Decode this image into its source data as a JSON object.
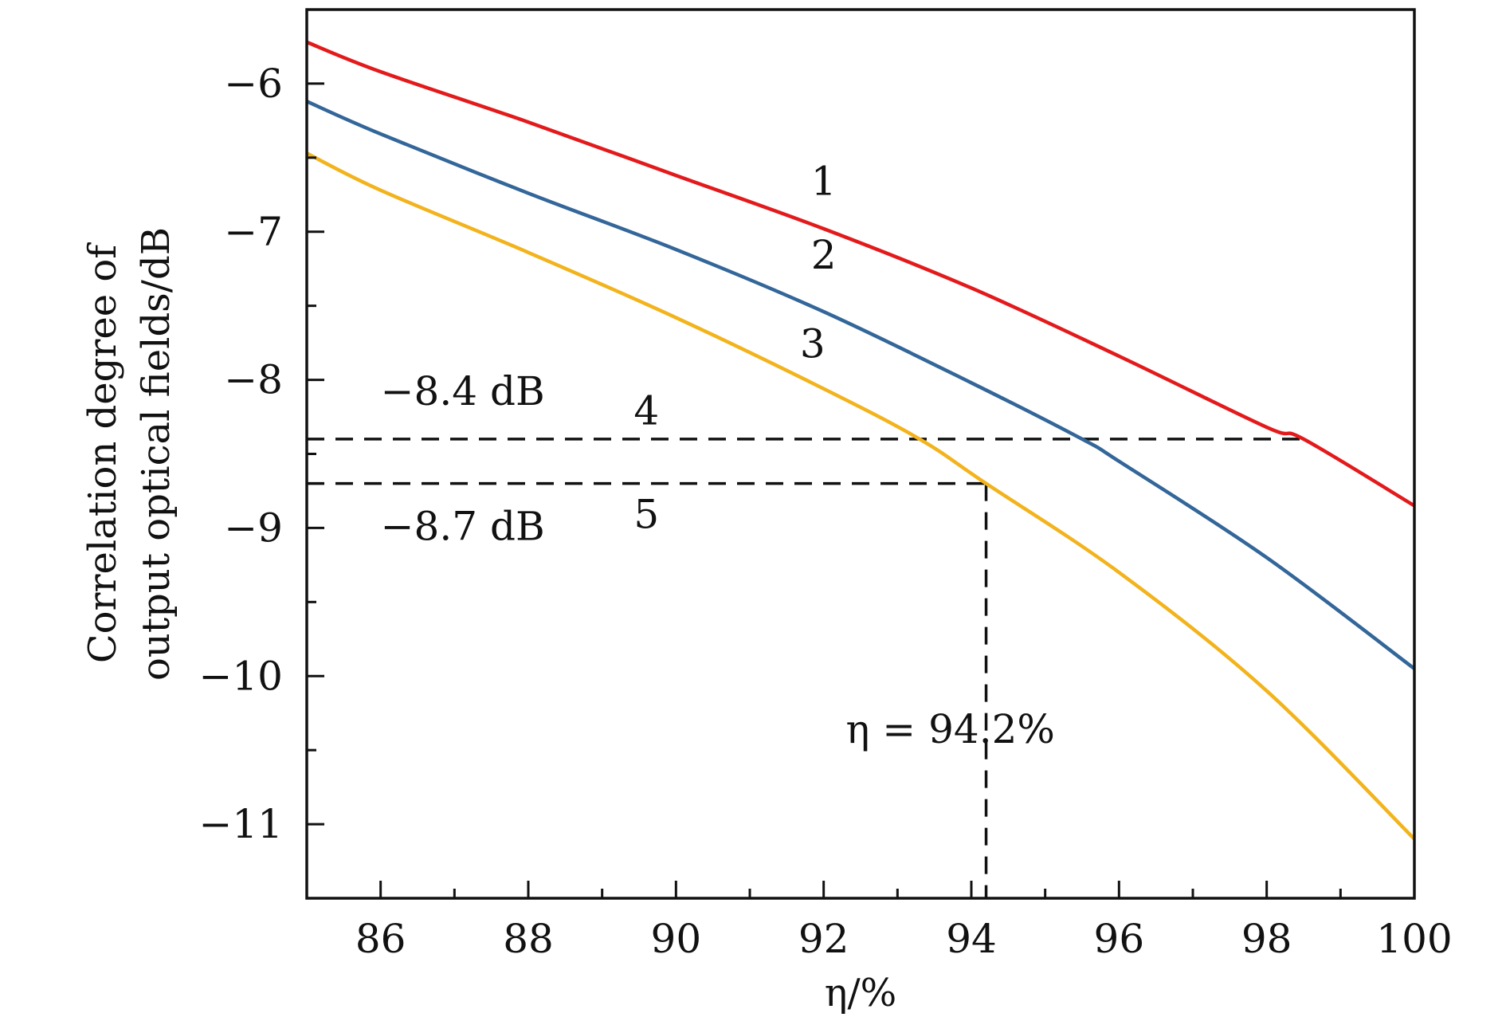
{
  "chart_data": {
    "type": "line",
    "title": "",
    "xlabel": "η/%",
    "ylabel_line1": "Correlation degree of",
    "ylabel_line2": "output optical fields/dB",
    "xlim": [
      85,
      100
    ],
    "ylim": [
      -11.5,
      -5.5
    ],
    "x_ticks": [
      86,
      88,
      90,
      92,
      94,
      96,
      98,
      100
    ],
    "x_tick_labels": [
      "86",
      "88",
      "90",
      "92",
      "94",
      "96",
      "98",
      "100"
    ],
    "y_ticks": [
      -11,
      -10,
      -9,
      -8,
      -7,
      -6
    ],
    "y_tick_labels": [
      "−11",
      "−10",
      "−9",
      "−8",
      "−7",
      "−6"
    ],
    "series": [
      {
        "name": "1",
        "color": "#e31a1c",
        "x": [
          85,
          86,
          88,
          90,
          92,
          94,
          96,
          98,
          98.5,
          100
        ],
        "y": [
          -5.72,
          -5.92,
          -6.26,
          -6.62,
          -6.98,
          -7.38,
          -7.84,
          -8.32,
          -8.4,
          -8.85
        ]
      },
      {
        "name": "2",
        "color": "#336699",
        "x": [
          85,
          86,
          88,
          90,
          92,
          94,
          95.5,
          96,
          98,
          100
        ],
        "y": [
          -6.12,
          -6.34,
          -6.74,
          -7.12,
          -7.54,
          -8.02,
          -8.4,
          -8.55,
          -9.2,
          -9.95
        ]
      },
      {
        "name": "3",
        "color": "#f2b31c",
        "x": [
          85,
          86,
          88,
          90,
          92,
          93.3,
          94.2,
          96,
          98,
          100
        ],
        "y": [
          -6.47,
          -6.72,
          -7.14,
          -7.58,
          -8.06,
          -8.4,
          -8.7,
          -9.3,
          -10.1,
          -11.1
        ]
      }
    ],
    "reference_lines": [
      {
        "name": "4",
        "type": "horizontal",
        "y": -8.4,
        "x_from": 85,
        "x_to": 98.5,
        "dash": true
      },
      {
        "name": "5",
        "type": "horizontal",
        "y": -8.7,
        "x_from": 85,
        "x_to": 94.2,
        "dash": true
      },
      {
        "name": "eta",
        "type": "vertical",
        "x": 94.2,
        "y_from": -8.7,
        "y_to": -11.5,
        "dash": true
      }
    ],
    "curve_labels": [
      {
        "text": "1",
        "x": 92.0,
        "y": -6.75
      },
      {
        "text": "2",
        "x": 92.0,
        "y": -7.25
      },
      {
        "text": "3",
        "x": 91.85,
        "y": -7.85
      },
      {
        "text": "4",
        "x": 89.6,
        "y": -8.3
      },
      {
        "text": "5",
        "x": 89.6,
        "y": -9.0
      }
    ],
    "annotations": [
      {
        "text": "−8.4 dB",
        "x": 86.0,
        "y": -8.17
      },
      {
        "text": "−8.7 dB",
        "x": 86.0,
        "y": -9.08
      },
      {
        "text": "η = 94.2%",
        "x": 92.3,
        "y": -10.45
      }
    ]
  }
}
